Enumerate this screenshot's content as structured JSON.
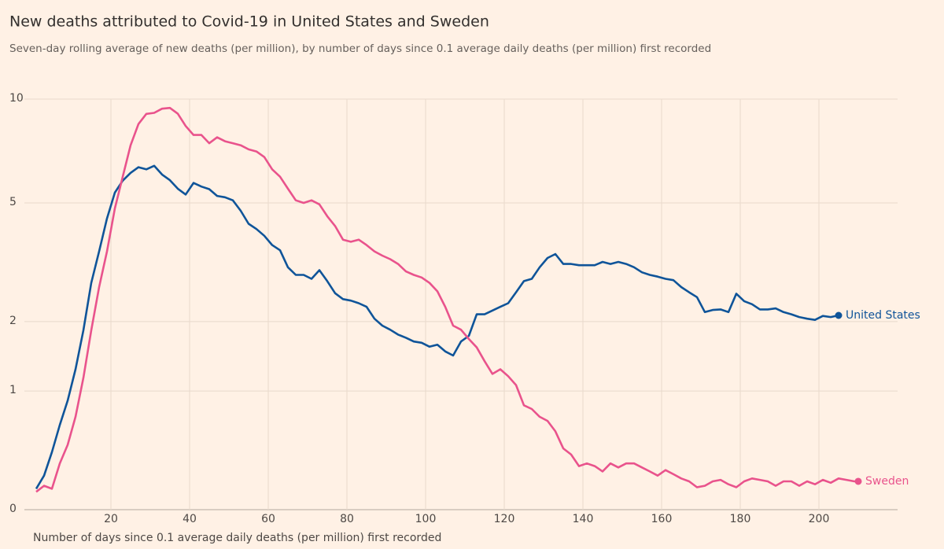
{
  "chart_data": {
    "type": "line",
    "title": "New deaths attributed to Covid-19 in United States and Sweden",
    "subtitle": "Seven-day rolling average of new deaths (per million), by number of days since 0.1 average daily deaths (per million) first recorded",
    "x_label": "Number of days since 0.1 average daily deaths (per million) first recorded",
    "x": [
      1,
      3,
      5,
      7,
      9,
      11,
      13,
      15,
      17,
      19,
      21,
      23,
      25,
      27,
      29,
      31,
      33,
      35,
      37,
      39,
      41,
      43,
      45,
      47,
      49,
      51,
      53,
      55,
      57,
      59,
      61,
      63,
      65,
      67,
      69,
      71,
      73,
      75,
      77,
      79,
      81,
      83,
      85,
      87,
      89,
      91,
      93,
      95,
      97,
      99,
      101,
      103,
      105,
      107,
      109,
      111,
      113,
      115,
      117,
      119,
      121,
      123,
      125,
      127,
      129,
      131,
      133,
      135,
      137,
      139,
      141,
      143,
      145,
      147,
      149,
      151,
      153,
      155,
      157,
      159,
      161,
      163,
      165,
      167,
      169,
      171,
      173,
      175,
      177,
      179,
      181,
      183,
      185,
      187,
      189,
      191,
      193,
      195,
      197,
      199,
      201,
      203,
      205,
      207,
      209,
      210
    ],
    "series": [
      {
        "name": "United States",
        "color": "#0f5499",
        "values": [
          0.13,
          0.22,
          0.4,
          0.64,
          0.89,
          1.27,
          1.85,
          2.76,
          3.52,
          4.48,
          5.37,
          5.83,
          6.15,
          6.39,
          6.3,
          6.45,
          6.08,
          5.85,
          5.52,
          5.3,
          5.74,
          5.6,
          5.5,
          5.25,
          5.2,
          5.09,
          4.73,
          4.31,
          4.15,
          3.95,
          3.69,
          3.55,
          3.12,
          2.94,
          2.94,
          2.85,
          3.05,
          2.8,
          2.54,
          2.42,
          2.39,
          2.34,
          2.27,
          2.05,
          1.93,
          1.86,
          1.78,
          1.73,
          1.67,
          1.65,
          1.59,
          1.62,
          1.52,
          1.46,
          1.67,
          1.76,
          2.13,
          2.13,
          2.2,
          2.27,
          2.34,
          2.56,
          2.8,
          2.85,
          3.12,
          3.35,
          3.45,
          3.2,
          3.2,
          3.17,
          3.17,
          3.17,
          3.25,
          3.2,
          3.25,
          3.2,
          3.12,
          3.0,
          2.94,
          2.9,
          2.85,
          2.82,
          2.67,
          2.56,
          2.46,
          2.17,
          2.21,
          2.22,
          2.17,
          2.53,
          2.38,
          2.32,
          2.22,
          2.22,
          2.24,
          2.17,
          2.13,
          2.08,
          2.05,
          2.03,
          2.1,
          2.08,
          2.11,
          null,
          null,
          null
        ]
      },
      {
        "name": "Sweden",
        "color": "#e9538c",
        "values": [
          0.11,
          0.15,
          0.13,
          0.31,
          0.46,
          0.72,
          1.16,
          1.85,
          2.67,
          3.52,
          4.81,
          5.99,
          7.4,
          8.51,
          9.09,
          9.15,
          9.4,
          9.45,
          9.1,
          8.4,
          7.92,
          7.92,
          7.5,
          7.8,
          7.6,
          7.5,
          7.4,
          7.2,
          7.1,
          6.84,
          6.3,
          5.99,
          5.52,
          5.09,
          5.0,
          5.09,
          4.95,
          4.55,
          4.24,
          3.84,
          3.78,
          3.84,
          3.69,
          3.52,
          3.41,
          3.32,
          3.2,
          3.02,
          2.94,
          2.88,
          2.76,
          2.58,
          2.27,
          1.93,
          1.86,
          1.71,
          1.58,
          1.38,
          1.21,
          1.27,
          1.18,
          1.07,
          0.84,
          0.8,
          0.72,
          0.68,
          0.58,
          0.43,
          0.38,
          0.29,
          0.31,
          0.29,
          0.25,
          0.31,
          0.28,
          0.31,
          0.31,
          0.28,
          0.25,
          0.22,
          0.26,
          0.23,
          0.2,
          0.18,
          0.14,
          0.15,
          0.18,
          0.19,
          0.16,
          0.14,
          0.18,
          0.2,
          0.19,
          0.18,
          0.15,
          0.18,
          0.18,
          0.15,
          0.18,
          0.16,
          0.19,
          0.17,
          0.2,
          0.19,
          0.18,
          0.18
        ]
      }
    ],
    "xlim": [
      0,
      220
    ],
    "xticks": [
      20,
      40,
      60,
      80,
      100,
      120,
      140,
      160,
      180,
      200
    ],
    "ylim": [
      0,
      10
    ],
    "yticks": [
      0,
      1,
      2,
      5,
      10
    ],
    "yscale": "log1p",
    "grid": true
  }
}
